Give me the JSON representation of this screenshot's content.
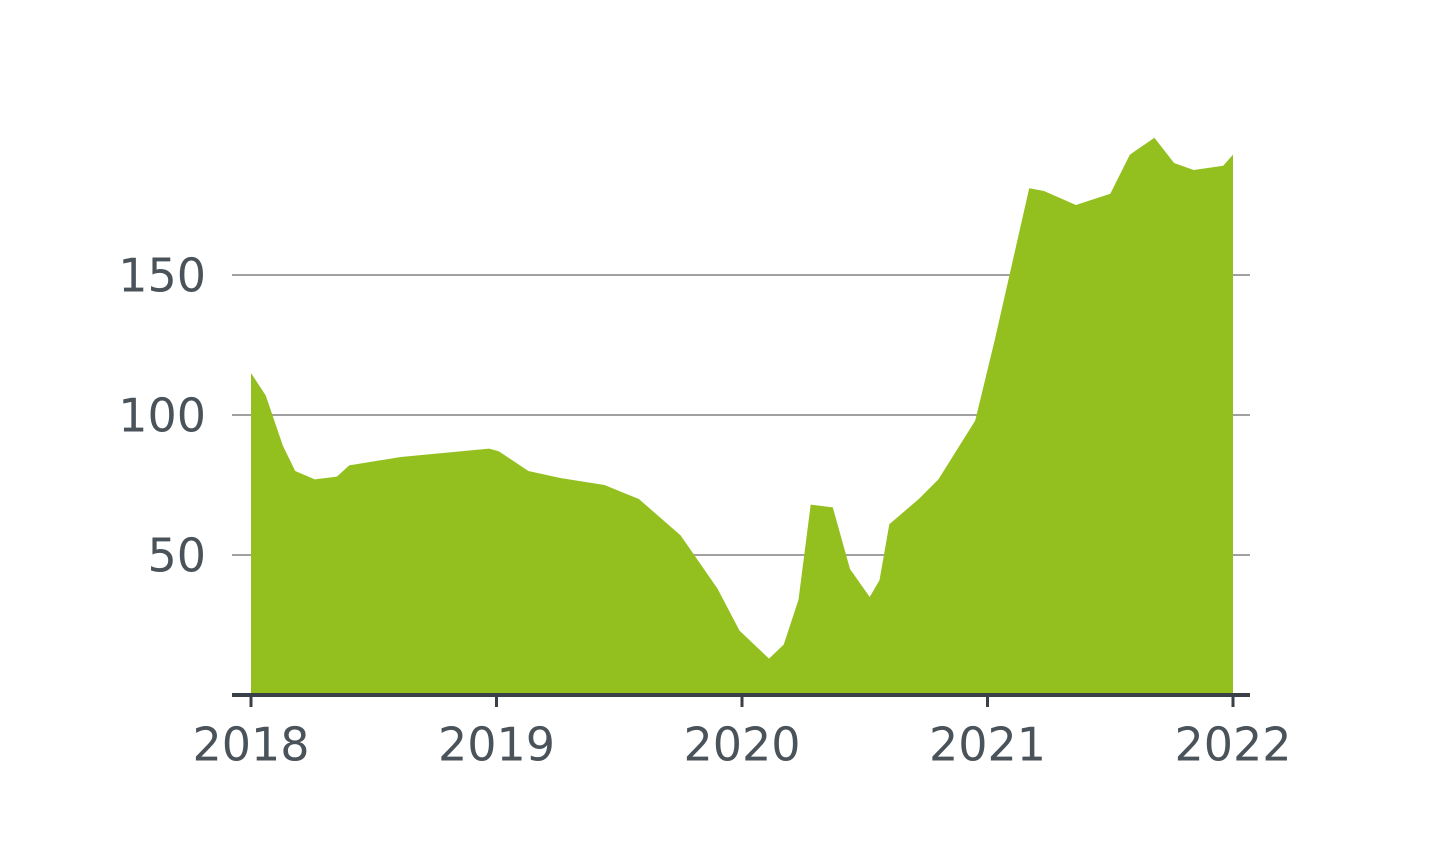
{
  "chart_data": {
    "type": "area",
    "color": "#93c01f",
    "grid": true,
    "x": [
      2018.0,
      2018.06,
      2018.13,
      2018.18,
      2018.26,
      2018.35,
      2018.4,
      2018.61,
      2018.97,
      2019.01,
      2019.13,
      2019.26,
      2019.44,
      2019.58,
      2019.75,
      2019.9,
      2019.99,
      2020.11,
      2020.17,
      2020.23,
      2020.28,
      2020.37,
      2020.44,
      2020.52,
      2020.56,
      2020.6,
      2020.72,
      2020.8,
      2020.95,
      2021.03,
      2021.17,
      2021.23,
      2021.36,
      2021.5,
      2021.58,
      2021.68,
      2021.76,
      2021.84,
      2021.96,
      2022.0
    ],
    "values": [
      115,
      107,
      89,
      80,
      77,
      78,
      82,
      85,
      88,
      87,
      80,
      77.5,
      75,
      70,
      57,
      38,
      23,
      13,
      18,
      34,
      68,
      67,
      45,
      35,
      41,
      61,
      70,
      77,
      98,
      127,
      181,
      180,
      175,
      179,
      193,
      199,
      190,
      187.5,
      189,
      193
    ],
    "xlim": [
      2018,
      2022
    ],
    "xticks": [
      2018,
      2019,
      2020,
      2021,
      2022
    ],
    "ylim": [
      0,
      200
    ],
    "yticks": [
      50,
      100,
      150
    ]
  }
}
